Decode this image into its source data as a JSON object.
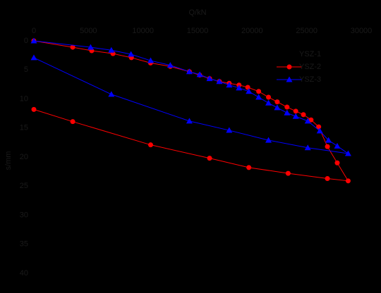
{
  "chart_data": {
    "type": "line",
    "x_label": "Q/kN",
    "y_label": "s/mm",
    "xlim": [
      0,
      30000
    ],
    "xticks": [
      0,
      5000,
      10000,
      15000,
      20000,
      25000,
      30000
    ],
    "ylim": [
      0,
      40
    ],
    "yticks": [
      0,
      5,
      10,
      15,
      20,
      25,
      30,
      35,
      40
    ],
    "y_inverted": true,
    "x_axis_position": "top",
    "legend": "upper right",
    "series": [
      {
        "name": "YSZ-1",
        "color": "#000000",
        "marker": "none",
        "x": [],
        "values": []
      },
      {
        "name": "YSZ-2",
        "color": "#ff0000",
        "marker": "circle",
        "x": [
          0,
          3560,
          5300,
          7250,
          8940,
          10690,
          12500,
          14250,
          15200,
          16100,
          17000,
          17900,
          18800,
          19600,
          20600,
          21500,
          22300,
          23200,
          24000,
          24700,
          25400,
          26100,
          26900,
          27800,
          28800,
          26900,
          23300,
          19700,
          16100,
          10700,
          3560,
          0
        ],
        "values": [
          0,
          1.1,
          1.7,
          2.2,
          2.9,
          3.8,
          4.4,
          5.3,
          5.9,
          6.5,
          7.0,
          7.3,
          7.6,
          8.0,
          8.7,
          9.7,
          10.5,
          11.4,
          12.1,
          12.7,
          13.6,
          14.8,
          18.2,
          21.0,
          24.1,
          23.7,
          22.8,
          21.8,
          20.2,
          17.9,
          13.9,
          11.8
        ]
      },
      {
        "name": "YSZ-3",
        "color": "#0000ff",
        "marker": "triangle",
        "x": [
          0,
          5200,
          7100,
          8900,
          10700,
          12500,
          14250,
          15200,
          16100,
          17000,
          17900,
          18800,
          19700,
          20600,
          21500,
          22300,
          23200,
          24000,
          25100,
          26200,
          27000,
          27800,
          28800,
          25100,
          21500,
          17900,
          14250,
          7100,
          0
        ],
        "values": [
          0,
          1.1,
          1.6,
          2.3,
          3.4,
          4.2,
          5.3,
          5.8,
          6.5,
          7.0,
          7.6,
          8.1,
          8.7,
          9.7,
          10.7,
          11.5,
          12.4,
          13.0,
          13.8,
          15.5,
          17.1,
          18.1,
          19.4,
          18.4,
          17.1,
          15.4,
          13.8,
          9.2,
          2.9
        ]
      }
    ]
  }
}
